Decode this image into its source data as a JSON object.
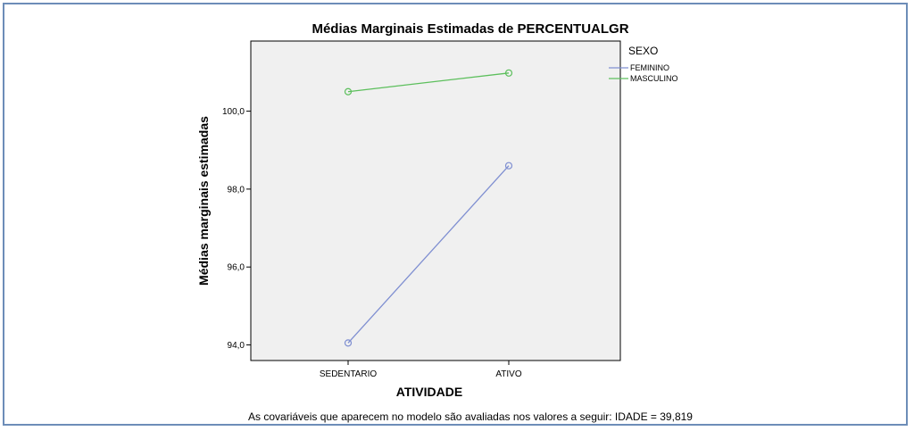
{
  "chart_data": {
    "type": "line",
    "title": "Médias Marginais Estimadas de PERCENTUALGR",
    "xlabel": "ATIVIDADE",
    "ylabel": "Médias marginais estimadas",
    "categories": [
      "SEDENTARIO",
      "ATIVO"
    ],
    "ylim": [
      93.6,
      101.8
    ],
    "yticks": [
      94.0,
      96.0,
      98.0,
      100.0
    ],
    "ytick_labels": [
      "94,0",
      "96,0",
      "98,0",
      "100,0"
    ],
    "grid": false,
    "legend_title": "SEXO",
    "legend_position": "right",
    "series": [
      {
        "name": "FEMININO",
        "values": [
          94.05,
          98.6
        ],
        "color": "#7f8fd1"
      },
      {
        "name": "MASCULINO",
        "values": [
          100.5,
          100.98
        ],
        "color": "#5cbf5c"
      }
    ],
    "footnote": "As covariáveis que aparecem no modelo são avaliadas nos valores a seguir: IDADE = 39,819"
  },
  "colors": {
    "plot_background": "#f0f0f0",
    "frame_border": "#6d8db8"
  }
}
